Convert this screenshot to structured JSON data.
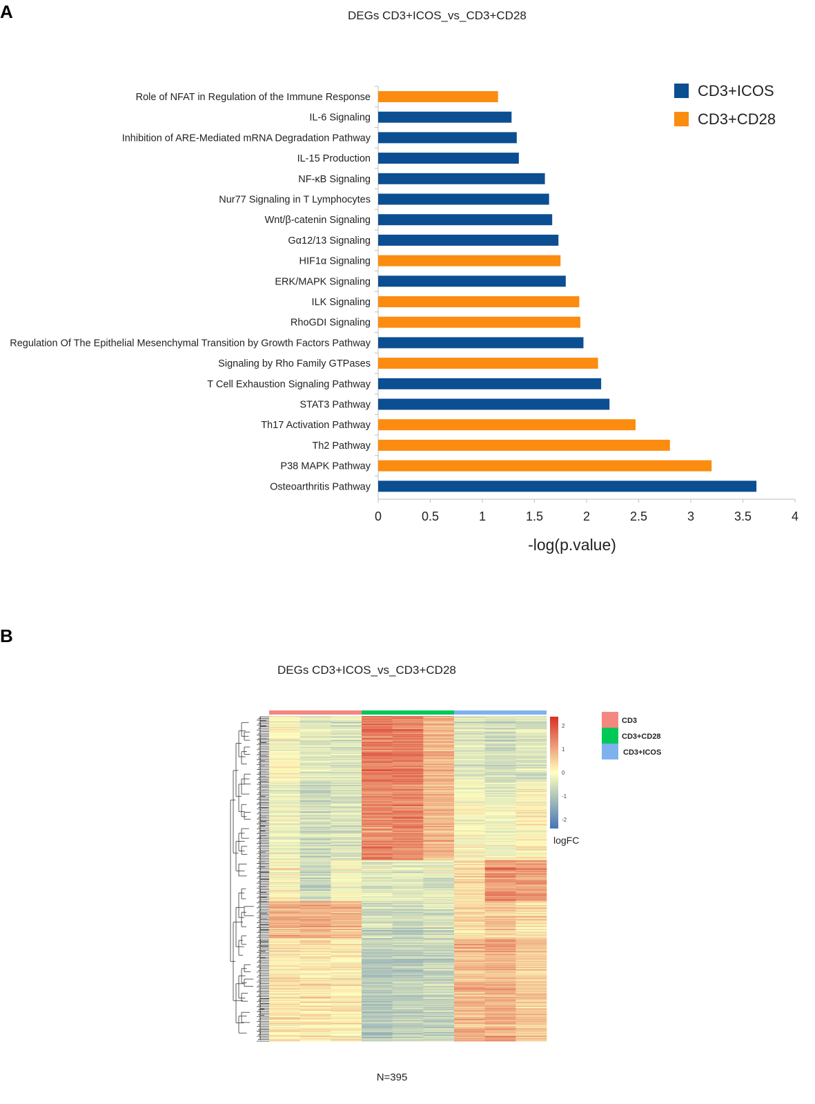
{
  "panels": {
    "a_letter": "A",
    "b_letter": "B"
  },
  "chart_data": [
    {
      "type": "bar",
      "orientation": "horizontal",
      "title": "DEGs CD3+ICOS_vs_CD3+CD28",
      "xlabel": "-log(p.value)",
      "ylabel": "",
      "xlim": [
        0,
        4
      ],
      "xticks": [
        "0",
        "0.5",
        "1",
        "1.5",
        "2",
        "2.5",
        "3",
        "3.5",
        "4"
      ],
      "legend": [
        {
          "name": "CD3+ICOS",
          "color": "#0b4e92"
        },
        {
          "name": "CD3+CD28",
          "color": "#fb8c10"
        }
      ],
      "legend_position": "top-right",
      "categories": [
        "Role of NFAT in Regulation of the Immune Response",
        "IL-6 Signaling",
        "Inhibition of ARE-Mediated mRNA Degradation Pathway",
        "IL-15 Production",
        "NF-κB Signaling",
        "Nur77 Signaling in T Lymphocytes",
        "Wnt/β-catenin Signaling",
        "Gα12/13 Signaling",
        "HIF1α Signaling",
        "ERK/MAPK Signaling",
        "ILK Signaling",
        "RhoGDI Signaling",
        "Regulation Of The Epithelial Mesenchymal Transition by Growth Factors Pathway",
        "Signaling by Rho Family GTPases",
        "T Cell Exhaustion Signaling Pathway",
        "STAT3 Pathway",
        "Th17 Activation Pathway",
        "Th2 Pathway",
        "P38 MAPK Pathway",
        "Osteoarthritis Pathway"
      ],
      "values": [
        1.15,
        1.28,
        1.33,
        1.35,
        1.6,
        1.64,
        1.67,
        1.73,
        1.75,
        1.8,
        1.93,
        1.94,
        1.97,
        2.11,
        2.14,
        2.22,
        2.47,
        2.8,
        3.2,
        3.63
      ],
      "groups": [
        "CD3+CD28",
        "CD3+ICOS",
        "CD3+ICOS",
        "CD3+ICOS",
        "CD3+ICOS",
        "CD3+ICOS",
        "CD3+ICOS",
        "CD3+ICOS",
        "CD3+CD28",
        "CD3+ICOS",
        "CD3+CD28",
        "CD3+CD28",
        "CD3+ICOS",
        "CD3+CD28",
        "CD3+ICOS",
        "CD3+ICOS",
        "CD3+CD28",
        "CD3+CD28",
        "CD3+CD28",
        "CD3+ICOS"
      ]
    },
    {
      "type": "heatmap",
      "title": "DEGs CD3+ICOS_vs_CD3+CD28",
      "n_label": "N=395",
      "n_genes": 395,
      "column_groups": [
        {
          "name": "CD3",
          "color": "#f4877f",
          "replicates": 3
        },
        {
          "name": "CD3+CD28",
          "color": "#00c957",
          "replicates": 3
        },
        {
          "name": "CD3+ICOS",
          "color": "#7fb1ee",
          "replicates": 3
        }
      ],
      "color_scale": {
        "label": "logFC",
        "min": -2.3,
        "max": 2.3,
        "ticks": [
          "2",
          "1",
          "0",
          "-1",
          "-2"
        ],
        "low_color": "#4575b4",
        "mid_color": "#ffffbf",
        "high_color": "#d73027"
      },
      "row_clusters": [
        {
          "rows": 80,
          "means": [
            0.1,
            -0.3,
            -0.4,
            1.5,
            1.5,
            0.9,
            -0.3,
            -0.5,
            -0.4
          ]
        },
        {
          "rows": 95,
          "means": [
            -0.2,
            -0.6,
            -0.5,
            1.3,
            1.3,
            0.8,
            0.0,
            -0.2,
            0.1
          ]
        },
        {
          "rows": 50,
          "means": [
            0.1,
            -0.6,
            0.0,
            -0.3,
            -0.3,
            -0.3,
            0.5,
            1.3,
            1.1
          ]
        },
        {
          "rows": 45,
          "means": [
            0.9,
            0.9,
            0.8,
            -0.6,
            -0.7,
            -0.5,
            0.4,
            0.6,
            0.3
          ]
        },
        {
          "rows": 125,
          "means": [
            0.3,
            0.3,
            0.2,
            -0.9,
            -0.8,
            -0.7,
            0.8,
            0.9,
            0.6
          ]
        }
      ]
    }
  ]
}
